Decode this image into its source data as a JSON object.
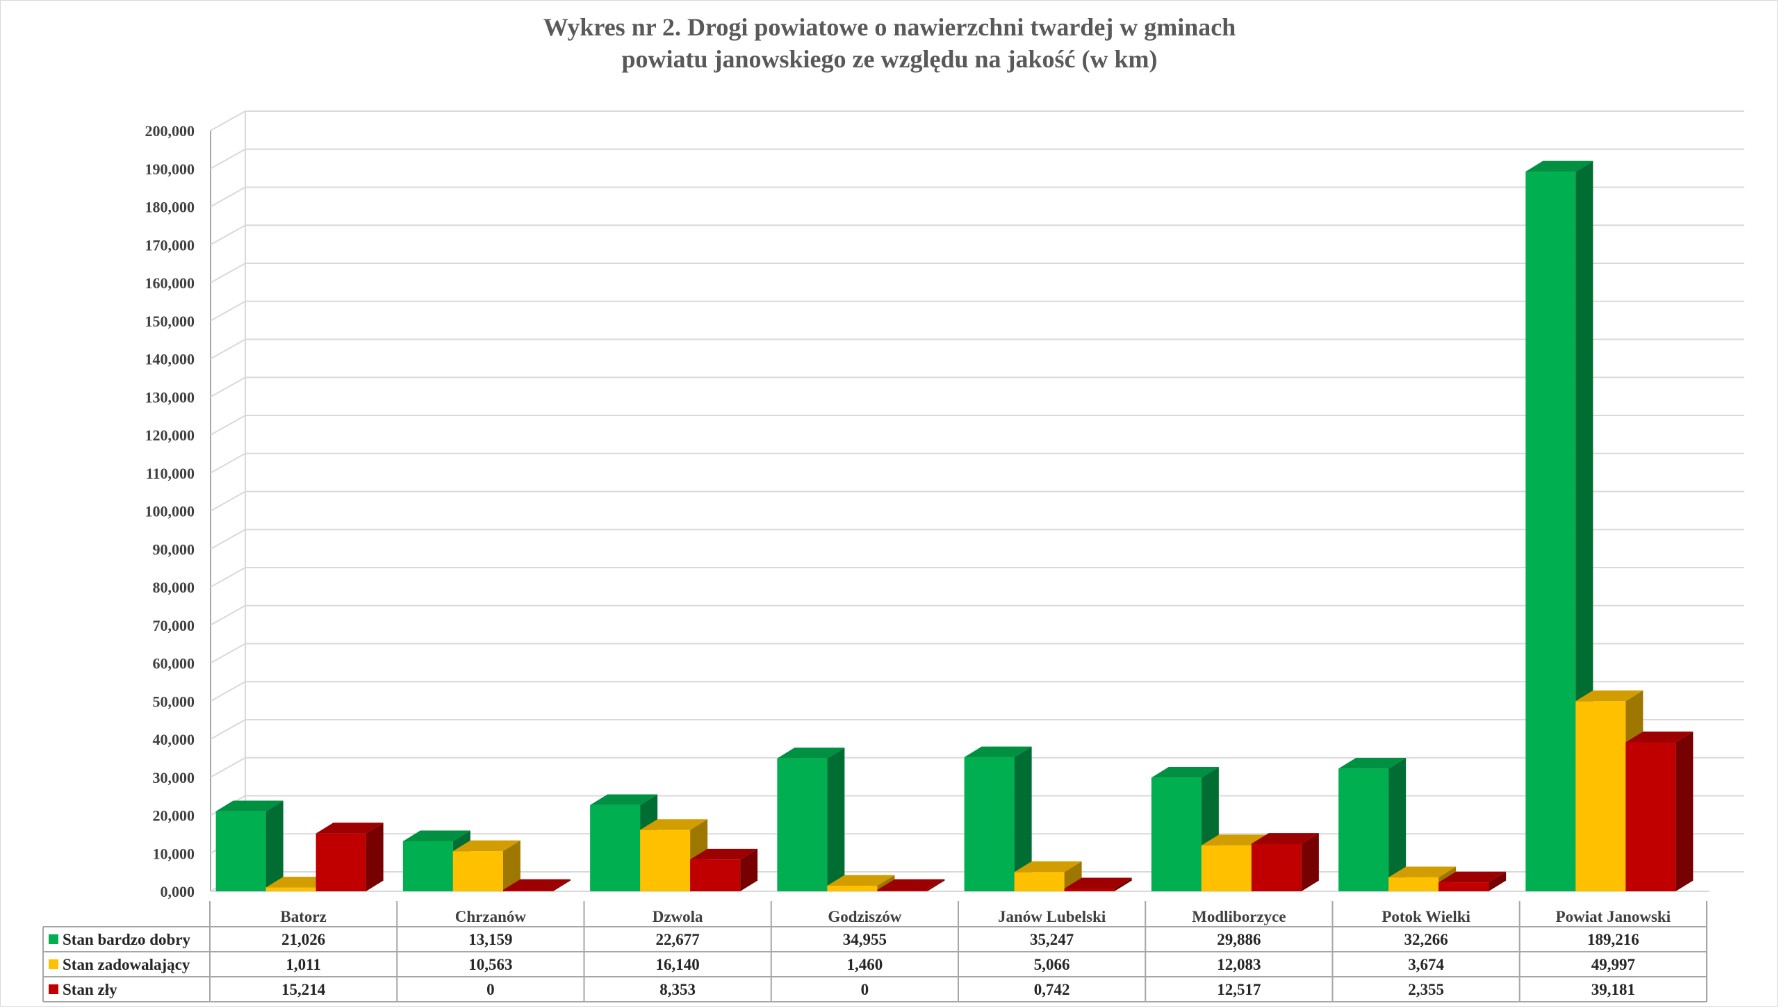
{
  "chart_data": {
    "type": "bar",
    "title_line1": "Wykres nr 2. Drogi powiatowe o nawierzchni twardej w gminach",
    "title_line2": "powiatu janowskiego ze względu na jakość (w km)",
    "categories": [
      "Batorz",
      "Chrzanów",
      "Dzwola",
      "Godziszów",
      "Janów Lubelski",
      "Modliborzyce",
      "Potok Wielki",
      "Powiat Janowski"
    ],
    "series": [
      {
        "name": "Stan bardzo dobry",
        "color": "#00b050",
        "values": [
          21.026,
          13.159,
          22.677,
          34.955,
          35.247,
          29.886,
          32.266,
          189.216
        ],
        "labels": [
          "21,026",
          "13,159",
          "22,677",
          "34,955",
          "35,247",
          "29,886",
          "32,266",
          "189,216"
        ]
      },
      {
        "name": "Stan zadowalający",
        "color": "#ffc000",
        "values": [
          1.011,
          10.563,
          16.14,
          1.46,
          5.066,
          12.083,
          3.674,
          49.997
        ],
        "labels": [
          "1,011",
          "10,563",
          "16,140",
          "1,460",
          "5,066",
          "12,083",
          "3,674",
          "49,997"
        ]
      },
      {
        "name": "Stan zły",
        "color": "#c00000",
        "values": [
          15.214,
          0,
          8.353,
          0,
          0.742,
          12.517,
          2.355,
          39.181
        ],
        "labels": [
          "15,214",
          "0",
          "8,353",
          "0",
          "0,742",
          "12,517",
          "2,355",
          "39,181"
        ]
      }
    ],
    "yticks": [
      "0,000",
      "10,000",
      "20,000",
      "30,000",
      "40,000",
      "50,000",
      "60,000",
      "70,000",
      "80,000",
      "90,000",
      "100,000",
      "110,000",
      "120,000",
      "130,000",
      "140,000",
      "150,000",
      "160,000",
      "170,000",
      "180,000",
      "190,000",
      "200,000"
    ],
    "ylim": [
      0,
      200
    ],
    "grid": true,
    "legend": "data-table",
    "style": "3d-clustered-column"
  }
}
